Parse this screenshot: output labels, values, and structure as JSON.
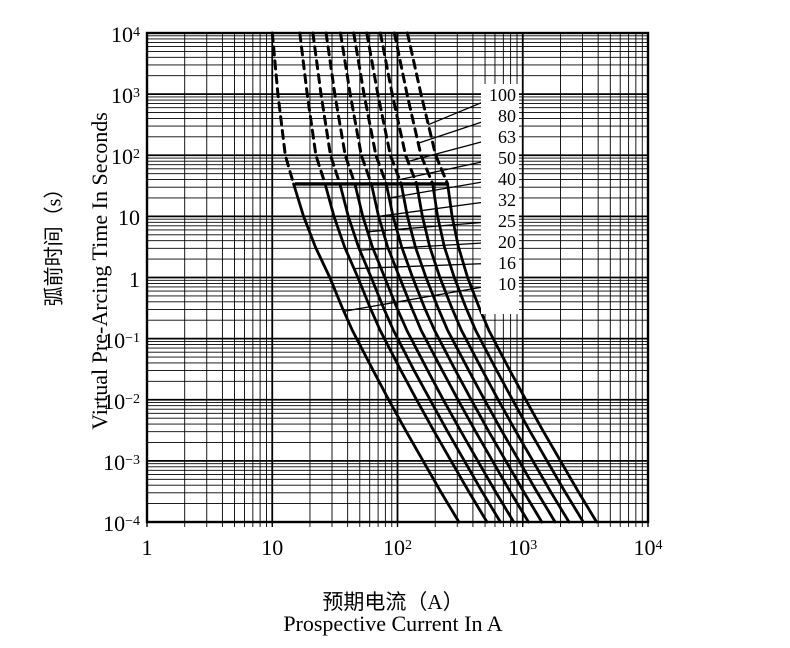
{
  "y_axis": {
    "label_cn": "弧前时间（s）",
    "label_en": "Virtual Pre-Arcing Time In Seconds",
    "ticks": [
      {
        "base": "10",
        "exp": "4"
      },
      {
        "base": "10",
        "exp": "3"
      },
      {
        "base": "10",
        "exp": "2"
      },
      {
        "base": "10",
        "exp": ""
      },
      {
        "base": "1",
        "exp": ""
      },
      {
        "base": "10",
        "exp": "−1"
      },
      {
        "base": "10",
        "exp": "−2"
      },
      {
        "base": "10",
        "exp": "−3"
      },
      {
        "base": "10",
        "exp": "−4"
      }
    ]
  },
  "x_axis": {
    "label_cn": "预期电流（A）",
    "label_en": "Prospective Current In A",
    "ticks": [
      {
        "base": "1",
        "exp": ""
      },
      {
        "base": "10",
        "exp": ""
      },
      {
        "base": "10",
        "exp": "2"
      },
      {
        "base": "10",
        "exp": "3"
      },
      {
        "base": "10",
        "exp": "4"
      }
    ]
  },
  "legend": {
    "ratings": [
      "100",
      "80",
      "63",
      "50",
      "40",
      "32",
      "25",
      "20",
      "16",
      "10"
    ]
  },
  "chart_data": {
    "type": "line",
    "title": "",
    "xlabel": "Prospective Current In A",
    "ylabel": "Virtual Pre-Arcing Time In Seconds",
    "xscale": "log",
    "yscale": "log",
    "xlim": [
      1,
      10000
    ],
    "ylim": [
      0.0001,
      10000
    ],
    "grid": "log-log with minor decade lines",
    "legend_position": "right-inside-box",
    "line_color": "#000000",
    "dashed_above_t_seconds": 34,
    "boundary_bar": {
      "t": 34,
      "I_start": 15.2,
      "I_end": 253
    },
    "t_values": [
      10000,
      1000,
      100,
      34,
      10,
      3.16,
      1,
      0.316,
      0.135,
      0.0316,
      0.01,
      0.00316,
      0.001,
      0.000316,
      0.0001
    ],
    "series": [
      {
        "name": "10",
        "I": [
          10.0,
          11.1,
          12.7,
          14.8,
          17.8,
          22.1,
          28.8,
          36.3,
          43.7,
          63.1,
          85.1,
          116,
          160,
          221,
          309
        ]
      },
      {
        "name": "16",
        "I": [
          16.6,
          19.0,
          22.3,
          26.4,
          31.1,
          37.8,
          48.3,
          60.7,
          72.9,
          105,
          142,
          194,
          268,
          370,
          518
        ]
      },
      {
        "name": "20",
        "I": [
          21.1,
          24.5,
          29.2,
          34.7,
          40.5,
          48.8,
          61.7,
          77.5,
          93.0,
          134,
          182,
          248,
          342,
          473,
          663
        ]
      },
      {
        "name": "25",
        "I": [
          26.9,
          31.6,
          38.2,
          45.7,
          52.8,
          63.0,
          79.0,
          99.0,
          119,
          172,
          232,
          317,
          438,
          605,
          847
        ]
      },
      {
        "name": "32",
        "I": [
          35.1,
          41.9,
          51.4,
          61.9,
          70.6,
          83.5,
          104,
          130,
          155,
          225,
          304,
          415,
          573,
          793,
          1111
        ]
      },
      {
        "name": "40",
        "I": [
          44.7,
          54.0,
          67.2,
          81.4,
          92.0,
          108,
          132,
          165,
          198,
          287,
          388,
          529,
          732,
          1013,
          1420
        ]
      },
      {
        "name": "50",
        "I": [
          56.9,
          69.6,
          87.8,
          107,
          120,
          139,
          169,
          211,
          252,
          366,
          495,
          675,
          935,
          1293,
          1814
        ]
      },
      {
        "name": "63",
        "I": [
          73.0,
          90.7,
          116,
          142,
          158,
          181,
          218,
          272,
          325,
          471,
          637,
          870,
          1205,
          1666,
          2339
        ]
      },
      {
        "name": "80",
        "I": [
          94.5,
          119,
          154,
          191,
          209,
          237,
          284,
          353,
          422,
          611,
          828,
          1131,
          1566,
          2168,
          3044
        ]
      },
      {
        "name": "100",
        "I": [
          120,
          154,
          202,
          251,
          273,
          307,
          363,
          451,
          538,
          780,
          1057,
          1444,
          2000,
          2769,
          3890
        ]
      }
    ],
    "leaders": [
      {
        "label": "100",
        "I": 176,
        "t": 316
      },
      {
        "label": "80",
        "I": 147,
        "t": 158
      },
      {
        "label": "63",
        "I": 121,
        "t": 79
      },
      {
        "label": "50",
        "I": 104,
        "t": 40
      },
      {
        "label": "40",
        "I": 85.7,
        "t": 20
      },
      {
        "label": "32",
        "I": 70.5,
        "t": 10
      },
      {
        "label": "25",
        "I": 57.5,
        "t": 5.6
      },
      {
        "label": "20",
        "I": 50.1,
        "t": 2.8
      },
      {
        "label": "16",
        "I": 45,
        "t": 1.4
      },
      {
        "label": "10",
        "I": 37.2,
        "t": 0.28
      }
    ]
  }
}
